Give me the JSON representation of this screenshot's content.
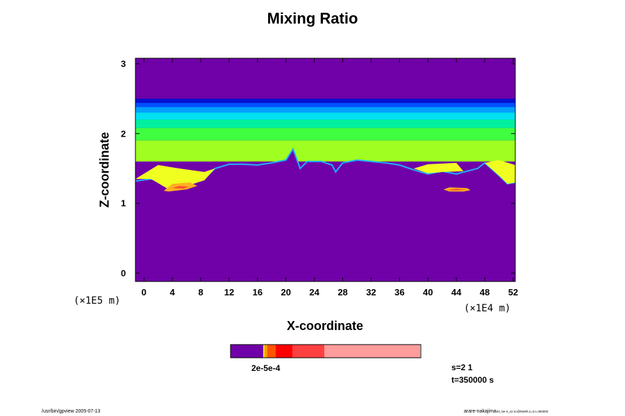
{
  "chart_data": {
    "type": "heatmap",
    "title": "Mixing Ratio",
    "xlabel": "X-coordinate",
    "ylabel": "Z-coordinate",
    "x_scale_label": "(×1E4 m)",
    "y_scale_label": "(×1E5 m)",
    "x_ticks": [
      "0",
      "4",
      "8",
      "12",
      "16",
      "20",
      "24",
      "28",
      "32",
      "36",
      "40",
      "44",
      "48",
      "52"
    ],
    "y_ticks": [
      "0",
      "1",
      "2",
      "3"
    ],
    "xlim": [
      -1.2,
      52.3
    ],
    "ylim": [
      -0.12,
      3.08
    ],
    "colorbar_label": "2e-5e-4",
    "colorbar_colors": [
      "#7000a8",
      "#ffe000",
      "#ff9a00",
      "#ff5500",
      "#ff0000",
      "#ff4040",
      "#ff9c9c"
    ],
    "regions": [
      {
        "name": "upper",
        "color": "#7000a8",
        "z_from": 2.5,
        "z_to": 3.08
      },
      {
        "name": "band-dark-blue",
        "color": "#0010d0",
        "z_from": 2.44,
        "z_to": 2.5
      },
      {
        "name": "band-blue",
        "color": "#0050ff",
        "z_from": 2.38,
        "z_to": 2.44
      },
      {
        "name": "band-light-blue",
        "color": "#00a0ff",
        "z_from": 2.3,
        "z_to": 2.38
      },
      {
        "name": "band-cyan",
        "color": "#00e0f0",
        "z_from": 2.2,
        "z_to": 2.3
      },
      {
        "name": "band-aqua",
        "color": "#00f0a0",
        "z_from": 2.08,
        "z_to": 2.2
      },
      {
        "name": "band-green",
        "color": "#40ff40",
        "z_from": 1.9,
        "z_to": 2.08
      },
      {
        "name": "band-lime",
        "color": "#a0ff20",
        "z_from": 1.6,
        "z_to": 1.9
      }
    ],
    "boundary": [
      [
        -1.2,
        1.32
      ],
      [
        1,
        1.35
      ],
      [
        2.5,
        1.3
      ],
      [
        3.5,
        1.2
      ],
      [
        6,
        1.25
      ],
      [
        8.5,
        1.35
      ],
      [
        10,
        1.5
      ],
      [
        12,
        1.56
      ],
      [
        14,
        1.56
      ],
      [
        16,
        1.55
      ],
      [
        18,
        1.58
      ],
      [
        20,
        1.62
      ],
      [
        21,
        1.78
      ],
      [
        22,
        1.5
      ],
      [
        23,
        1.6
      ],
      [
        25,
        1.6
      ],
      [
        26.5,
        1.55
      ],
      [
        27,
        1.45
      ],
      [
        28,
        1.58
      ],
      [
        30,
        1.62
      ],
      [
        32,
        1.6
      ],
      [
        34,
        1.58
      ],
      [
        36,
        1.55
      ],
      [
        38,
        1.48
      ],
      [
        40,
        1.42
      ],
      [
        42,
        1.46
      ],
      [
        44,
        1.42
      ],
      [
        47,
        1.5
      ],
      [
        48,
        1.58
      ],
      [
        50,
        1.4
      ],
      [
        51.2,
        1.28
      ],
      [
        52.3,
        1.3
      ]
    ],
    "yellow_patches": [
      [
        [
          -1.2,
          1.35
        ],
        [
          2,
          1.55
        ],
        [
          5,
          1.5
        ],
        [
          8.5,
          1.45
        ],
        [
          10,
          1.5
        ],
        [
          8.5,
          1.33
        ],
        [
          6,
          1.25
        ],
        [
          3.5,
          1.2
        ],
        [
          1,
          1.35
        ]
      ],
      [
        [
          38,
          1.5
        ],
        [
          40,
          1.56
        ],
        [
          44,
          1.58
        ],
        [
          45,
          1.46
        ],
        [
          42,
          1.45
        ],
        [
          40,
          1.43
        ]
      ],
      [
        [
          48,
          1.58
        ],
        [
          50,
          1.62
        ],
        [
          52.3,
          1.55
        ],
        [
          52.3,
          1.3
        ],
        [
          51.2,
          1.28
        ],
        [
          50,
          1.4
        ]
      ]
    ],
    "orange_patches": [
      [
        [
          2.8,
          1.18
        ],
        [
          4,
          1.28
        ],
        [
          6.5,
          1.3
        ],
        [
          7.5,
          1.25
        ],
        [
          6,
          1.2
        ],
        [
          3.5,
          1.17
        ]
      ],
      [
        [
          42.2,
          1.2
        ],
        [
          43,
          1.23
        ],
        [
          45.5,
          1.22
        ],
        [
          46,
          1.19
        ],
        [
          45,
          1.17
        ],
        [
          43,
          1.17
        ]
      ]
    ],
    "red_patches": [
      [
        [
          4,
          1.22
        ],
        [
          5,
          1.25
        ],
        [
          6.3,
          1.24
        ],
        [
          5.5,
          1.21
        ]
      ],
      [
        [
          42.6,
          1.19
        ],
        [
          44,
          1.21
        ],
        [
          45.4,
          1.2
        ],
        [
          44,
          1.185
        ]
      ]
    ]
  },
  "info": {
    "s_label": "s=2 1",
    "t_label": "t=350000 s"
  },
  "footer": {
    "left": "/usr/bin/gpview 2005-07-13",
    "right": "arare-nakajima",
    "right_small": "03_5e-4_v2.nc@MixRt,x=2,t=350000"
  }
}
